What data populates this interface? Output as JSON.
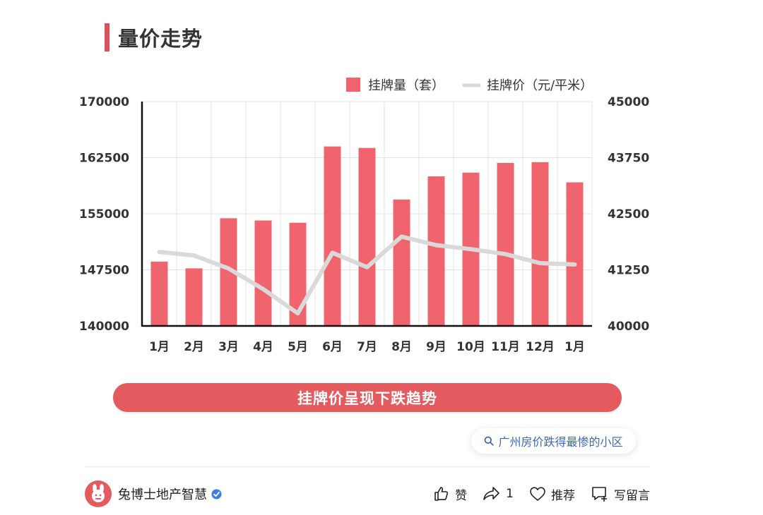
{
  "header": {
    "title": "量价走势",
    "accent_color": "#e0505a"
  },
  "chart_data": {
    "type": "bar",
    "categories": [
      "1月",
      "2月",
      "3月",
      "4月",
      "5月",
      "6月",
      "7月",
      "8月",
      "9月",
      "10月",
      "11月",
      "12月",
      "1月"
    ],
    "series": [
      {
        "name": "挂牌量（套）",
        "type": "bar",
        "axis": "left",
        "color": "#f0646e",
        "values": [
          148600,
          147700,
          154400,
          154100,
          153800,
          164000,
          163800,
          156900,
          160000,
          160500,
          161800,
          161900,
          159200
        ]
      },
      {
        "name": "挂牌价（元/平米）",
        "type": "line",
        "axis": "right",
        "color": "#d9d9d9",
        "values": [
          41650,
          41570,
          41280,
          40820,
          40280,
          41630,
          41310,
          41990,
          41800,
          41710,
          41600,
          41400,
          41370
        ]
      }
    ],
    "y_left": {
      "ticks": [
        "170000",
        "162500",
        "155000",
        "147500",
        "140000"
      ],
      "ylim": [
        140000,
        170000
      ]
    },
    "y_right": {
      "ticks": [
        "45000",
        "43750",
        "42500",
        "41250",
        "40000"
      ],
      "ylim": [
        40000,
        45000
      ]
    },
    "grid": true,
    "legend": "top-right"
  },
  "banner": {
    "text": "挂牌价呈现下跌趋势",
    "color": "#e35a5f"
  },
  "search_chip": {
    "text": "广州房价跌得最惨的小区",
    "icon": "search-icon"
  },
  "footer": {
    "author": "兔博士地产智慧",
    "verified_icon": "verified-icon",
    "actions": {
      "like_label": "赞",
      "share_count": "1",
      "recommend_label": "推荐",
      "comment_label": "写留言"
    }
  }
}
